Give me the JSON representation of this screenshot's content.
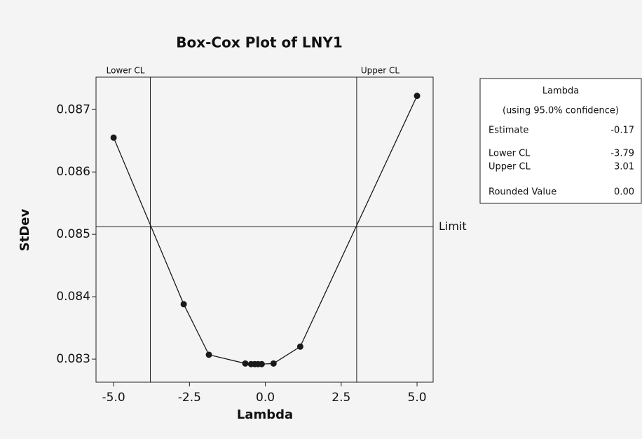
{
  "chart_data": {
    "type": "line",
    "title": "Box-Cox Plot of LNY1",
    "x_label": "Lambda",
    "y_label": "StDev",
    "x": [
      -5.0,
      -2.69,
      -1.86,
      -0.66,
      -0.47,
      -0.35,
      -0.24,
      -0.12,
      0.27,
      1.15,
      5.0
    ],
    "series": [
      {
        "name": "StDev",
        "color": "#1a1a1a",
        "values": [
          0.08655,
          0.08388,
          0.08307,
          0.08293,
          0.08292,
          0.08292,
          0.08292,
          0.08292,
          0.08293,
          0.0832,
          0.08722
        ]
      }
    ],
    "xlim": [
      -5.58,
      5.53
    ],
    "xticks": [
      {
        "value": -5,
        "label": "-5.0"
      },
      {
        "value": -2.5,
        "label": "-2.5"
      },
      {
        "value": 0,
        "label": "0.0"
      },
      {
        "value": 2.5,
        "label": "2.5"
      },
      {
        "value": 5,
        "label": "5.0"
      }
    ],
    "ylim": [
      0.08263,
      0.08752
    ],
    "yticks": [
      0.083,
      0.084,
      0.085,
      0.086,
      0.087
    ],
    "limit": 0.08512,
    "limit_label": "Limit",
    "legend": {
      "title": "Lambda",
      "subtitle": "(using 95.0% confidence)",
      "rows": [
        {
          "label": "Estimate",
          "value": -0.17
        },
        {
          "label": "Lower CL",
          "value": -3.79
        },
        {
          "label": "Upper CL",
          "value": 3.01
        },
        {
          "label": "Rounded Value",
          "value": "0.00"
        }
      ]
    }
  }
}
